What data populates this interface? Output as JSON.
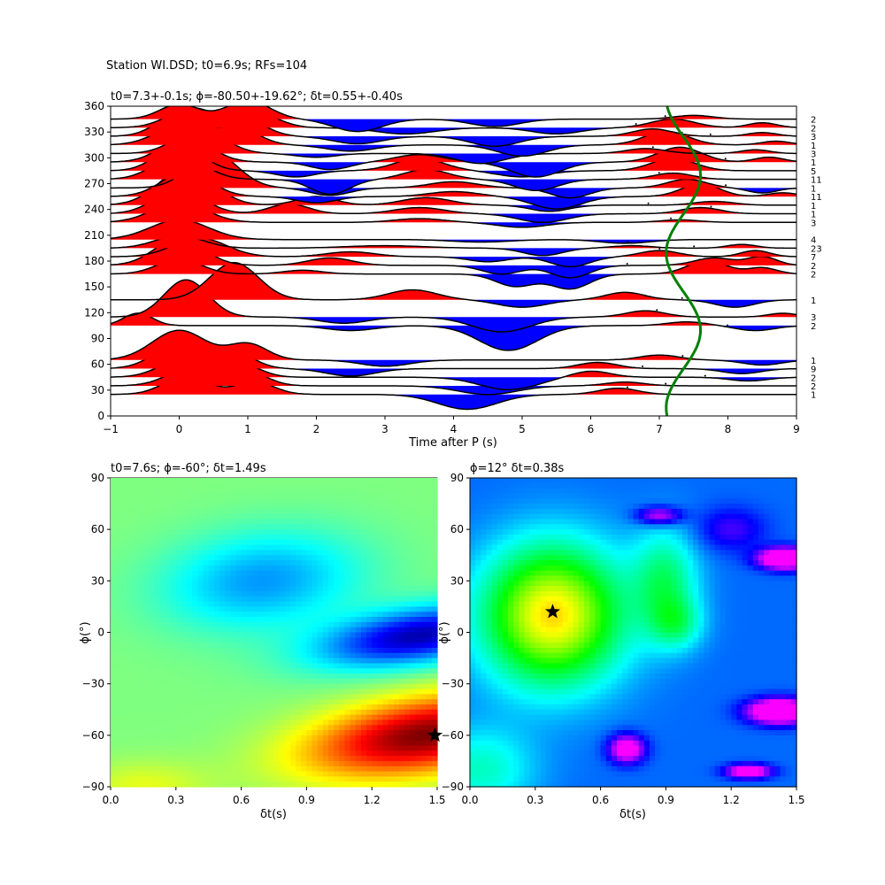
{
  "figure": {
    "suptitle": "Station WI.DSD; t0=6.9s; RFs=104"
  },
  "chart_data": [
    {
      "type": "line",
      "title": "t0=7.3+-0.1s; ϕ=-80.50+-19.62°; δt=0.55+-0.40s",
      "xlabel": "Time after P (s)",
      "ylabel": "",
      "xlim": [
        -1,
        9
      ],
      "ylim": [
        0,
        360
      ],
      "xticks": [
        "−1",
        "0",
        "1",
        "2",
        "3",
        "4",
        "5",
        "6",
        "7",
        "8",
        "9"
      ],
      "yticks": [
        "0",
        "30",
        "60",
        "90",
        "120",
        "150",
        "180",
        "210",
        "240",
        "270",
        "300",
        "330",
        "360"
      ],
      "fill_positive_color": "#ff0000",
      "fill_negative_color": "#0000ff",
      "trace_color": "#000000",
      "curve_color": "#008000",
      "traces": [
        {
          "baz": 25,
          "count": "1",
          "peaks": [
            [
              0.1,
              1.5,
              0.45
            ],
            [
              1.1,
              1.0,
              0.4
            ],
            [
              4.2,
              -1.2,
              0.6
            ],
            [
              6.4,
              0.5,
              0.4
            ]
          ]
        },
        {
          "baz": 35,
          "count": "2",
          "peaks": [
            [
              0.2,
              1.5,
              0.5
            ],
            [
              1.0,
              1.1,
              0.4
            ],
            [
              4.5,
              -0.7,
              0.6
            ],
            [
              6.5,
              0.3,
              0.4
            ]
          ]
        },
        {
          "baz": 45,
          "count": "2",
          "peaks": [
            [
              0.1,
              1.6,
              0.5
            ],
            [
              0.9,
              1.0,
              0.4
            ],
            [
              4.8,
              -1.0,
              0.6
            ],
            [
              6.0,
              0.5,
              0.4
            ],
            [
              8.3,
              -0.3,
              0.4
            ]
          ]
        },
        {
          "baz": 55,
          "count": "9",
          "peaks": [
            [
              0.0,
              2.0,
              0.5
            ],
            [
              0.8,
              1.3,
              0.4
            ],
            [
              2.5,
              -0.6,
              0.5
            ],
            [
              6.1,
              0.5,
              0.4
            ],
            [
              8.2,
              -0.4,
              0.4
            ]
          ]
        },
        {
          "baz": 65,
          "count": "1",
          "peaks": [
            [
              0.0,
              2.4,
              0.55
            ],
            [
              1.0,
              1.3,
              0.4
            ],
            [
              3.0,
              -0.5,
              0.5
            ],
            [
              7.0,
              0.4,
              0.4
            ],
            [
              8.5,
              -0.4,
              0.4
            ]
          ]
        },
        {
          "baz": 105,
          "count": "2",
          "peaks": [
            [
              -0.6,
              1.0,
              0.3
            ],
            [
              2.5,
              -0.4,
              0.5
            ],
            [
              4.8,
              -2.0,
              0.6
            ],
            [
              7.4,
              0.3,
              0.4
            ],
            [
              8.4,
              -0.4,
              0.4
            ]
          ]
        },
        {
          "baz": 115,
          "count": "3",
          "peaks": [
            [
              0.1,
              3.0,
              0.45
            ],
            [
              2.4,
              -0.5,
              0.5
            ],
            [
              4.7,
              -1.2,
              0.6
            ],
            [
              6.8,
              0.5,
              0.4
            ],
            [
              8.8,
              0.3,
              0.3
            ]
          ]
        },
        {
          "baz": 135,
          "count": "1",
          "peaks": [
            [
              0.8,
              3.0,
              0.5
            ],
            [
              3.4,
              0.8,
              0.5
            ],
            [
              5.0,
              -0.6,
              0.5
            ],
            [
              6.5,
              0.6,
              0.4
            ],
            [
              8.1,
              -0.6,
              0.4
            ]
          ]
        },
        {
          "baz": 165,
          "count": "2",
          "peaks": [
            [
              0.0,
              1.2,
              0.45
            ],
            [
              1.8,
              0.3,
              0.4
            ],
            [
              4.9,
              -1.0,
              0.4
            ],
            [
              5.7,
              -1.2,
              0.4
            ],
            [
              7.7,
              1.1,
              0.4
            ],
            [
              8.5,
              0.5,
              0.3
            ]
          ]
        },
        {
          "baz": 175,
          "count": "2",
          "peaks": [
            [
              0.0,
              2.2,
              0.5
            ],
            [
              2.2,
              0.6,
              0.45
            ],
            [
              4.7,
              -0.7,
              0.4
            ],
            [
              5.7,
              -1.0,
              0.4
            ],
            [
              7.8,
              0.6,
              0.4
            ],
            [
              8.5,
              0.7,
              0.3
            ]
          ]
        },
        {
          "baz": 185,
          "count": "7",
          "peaks": [
            [
              0.3,
              1.5,
              0.55
            ],
            [
              2.5,
              0.4,
              0.5
            ],
            [
              4.5,
              -0.4,
              0.4
            ],
            [
              5.7,
              -0.8,
              0.4
            ],
            [
              7.0,
              0.5,
              0.4
            ],
            [
              8.4,
              0.5,
              0.3
            ]
          ]
        },
        {
          "baz": 195,
          "count": "23",
          "peaks": [
            [
              0.0,
              1.0,
              0.5
            ],
            [
              3.0,
              0.2,
              0.8
            ],
            [
              5.3,
              -0.6,
              0.4
            ],
            [
              6.6,
              0.2,
              0.4
            ],
            [
              8.2,
              0.3,
              0.3
            ]
          ]
        },
        {
          "baz": 205,
          "count": "4",
          "peaks": [
            [
              0.0,
              1.6,
              0.6
            ],
            [
              4.4,
              -0.2,
              0.6
            ],
            [
              6.5,
              -0.3,
              0.5
            ]
          ]
        },
        {
          "baz": 225,
          "count": "3",
          "peaks": [
            [
              0.0,
              1.6,
              0.55
            ],
            [
              3.5,
              0.3,
              0.5
            ],
            [
              5.0,
              -0.4,
              0.5
            ],
            [
              7.3,
              0.2,
              0.4
            ]
          ]
        },
        {
          "baz": 235,
          "count": "1",
          "peaks": [
            [
              0.0,
              2.0,
              0.5
            ],
            [
              1.6,
              0.8,
              0.4
            ],
            [
              3.5,
              0.5,
              0.5
            ],
            [
              5.3,
              -0.7,
              0.5
            ],
            [
              7.6,
              0.5,
              0.4
            ]
          ]
        },
        {
          "baz": 245,
          "count": "1",
          "peaks": [
            [
              0.1,
              3.0,
              0.55
            ],
            [
              2.0,
              0.7,
              0.4
            ],
            [
              3.6,
              0.6,
              0.5
            ],
            [
              5.4,
              -0.5,
              0.4
            ],
            [
              7.8,
              0.3,
              0.4
            ]
          ]
        },
        {
          "baz": 255,
          "count": "11",
          "peaks": [
            [
              0.1,
              2.0,
              0.5
            ],
            [
              2.0,
              -0.5,
              0.4
            ],
            [
              4.0,
              0.4,
              0.5
            ],
            [
              5.5,
              -1.0,
              0.5
            ],
            [
              7.6,
              1.0,
              0.4
            ],
            [
              8.8,
              0.3,
              0.3
            ]
          ]
        },
        {
          "baz": 265,
          "count": "1",
          "peaks": [
            [
              0.5,
              2.8,
              0.5
            ],
            [
              2.2,
              -0.6,
              0.4
            ],
            [
              4.0,
              0.5,
              0.5
            ],
            [
              5.7,
              -0.8,
              0.4
            ],
            [
              7.4,
              0.7,
              0.4
            ],
            [
              8.5,
              -0.4,
              0.3
            ]
          ]
        },
        {
          "baz": 275,
          "count": "11",
          "peaks": [
            [
              0.0,
              2.0,
              0.5
            ],
            [
              2.2,
              -1.2,
              0.4
            ],
            [
              3.6,
              0.8,
              0.45
            ],
            [
              5.2,
              -0.9,
              0.45
            ],
            [
              7.2,
              0.5,
              0.4
            ]
          ]
        },
        {
          "baz": 285,
          "count": "5",
          "peaks": [
            [
              0.0,
              2.2,
              0.45
            ],
            [
              1.7,
              -0.5,
              0.4
            ],
            [
              3.5,
              1.0,
              0.5
            ],
            [
              5.0,
              -0.5,
              0.5
            ],
            [
              7.2,
              1.0,
              0.45
            ]
          ]
        },
        {
          "baz": 295,
          "count": "1",
          "peaks": [
            [
              0.1,
              2.0,
              0.5
            ],
            [
              2.2,
              -0.6,
              0.4
            ],
            [
              3.5,
              0.6,
              0.5
            ],
            [
              5.2,
              -1.2,
              0.5
            ],
            [
              7.3,
              1.2,
              0.45
            ],
            [
              8.6,
              0.4,
              0.3
            ]
          ]
        },
        {
          "baz": 305,
          "count": "3",
          "peaks": [
            [
              0.3,
              2.0,
              0.5
            ],
            [
              2.0,
              -0.3,
              0.4
            ],
            [
              4.4,
              -0.8,
              0.5
            ],
            [
              6.8,
              0.4,
              0.4
            ],
            [
              8.4,
              0.3,
              0.3
            ]
          ]
        },
        {
          "baz": 315,
          "count": "1",
          "peaks": [
            [
              0.0,
              1.5,
              0.5
            ],
            [
              0.9,
              1.2,
              0.4
            ],
            [
              2.5,
              -0.5,
              0.5
            ],
            [
              5.0,
              -0.9,
              0.5
            ],
            [
              7.1,
              1.1,
              0.45
            ],
            [
              8.7,
              0.3,
              0.3
            ]
          ]
        },
        {
          "baz": 325,
          "count": "3",
          "peaks": [
            [
              0.0,
              1.8,
              0.45
            ],
            [
              1.0,
              1.2,
              0.4
            ],
            [
              2.6,
              -0.6,
              0.5
            ],
            [
              4.6,
              -0.8,
              0.5
            ],
            [
              6.9,
              0.6,
              0.4
            ],
            [
              8.5,
              0.3,
              0.3
            ]
          ]
        },
        {
          "baz": 335,
          "count": "2",
          "peaks": [
            [
              0.2,
              1.6,
              0.5
            ],
            [
              1.2,
              1.0,
              0.4
            ],
            [
              3.3,
              -0.5,
              0.6
            ],
            [
              5.5,
              -0.5,
              0.5
            ],
            [
              7.2,
              0.7,
              0.45
            ],
            [
              8.5,
              0.4,
              0.3
            ]
          ]
        },
        {
          "baz": 345,
          "count": "2",
          "peaks": [
            [
              0.0,
              1.2,
              0.4
            ],
            [
              1.0,
              1.5,
              0.45
            ],
            [
              2.6,
              -1.0,
              0.5
            ],
            [
              4.6,
              -0.6,
              0.5
            ],
            [
              7.5,
              0.3,
              0.4
            ]
          ]
        }
      ],
      "t0_curve": {
        "base": 7.35,
        "amplitude": 0.25,
        "phase_deg": -80.5
      }
    },
    {
      "type": "heatmap",
      "title": "t0=7.6s; ϕ=-60°; δt=1.49s",
      "xlabel": "δt(s)",
      "ylabel": "ϕ(°)",
      "xlim": [
        0,
        1.5
      ],
      "ylim": [
        -90,
        90
      ],
      "xticks": [
        "0.0",
        "0.3",
        "0.6",
        "0.9",
        "1.2",
        "1.5"
      ],
      "yticks": [
        "−90",
        "−60",
        "−30",
        "0",
        "30",
        "60",
        "90"
      ],
      "colormap": "jet",
      "best": {
        "dt": 1.49,
        "phi": -60
      },
      "blobs": [
        {
          "x": 1.45,
          "y": -60,
          "amp": 1.0,
          "sx": 0.55,
          "sy": 22,
          "slope": 18
        },
        {
          "x": 1.42,
          "y": -2,
          "amp": -0.9,
          "sx": 0.45,
          "sy": 16,
          "slope": 18
        },
        {
          "x": 0.7,
          "y": 30,
          "amp": -0.45,
          "sx": 0.45,
          "sy": 28,
          "slope": 10
        },
        {
          "x": 0.15,
          "y": -90,
          "amp": 0.2,
          "sx": 0.3,
          "sy": 15,
          "slope": 0
        }
      ],
      "base": 0.5,
      "scale": 0.5
    },
    {
      "type": "heatmap",
      "title": "ϕ=12° δt=0.38s",
      "xlabel": "δt(s)",
      "ylabel": "ϕ(°)",
      "xlim": [
        0,
        1.5
      ],
      "ylim": [
        -90,
        90
      ],
      "xticks": [
        "0.0",
        "0.3",
        "0.6",
        "0.9",
        "1.2",
        "1.5"
      ],
      "yticks": [
        "−90",
        "−60",
        "−30",
        "0",
        "30",
        "60",
        "90"
      ],
      "colormap": "hsv",
      "best": {
        "dt": 0.38,
        "phi": 12
      },
      "blobs": [
        {
          "x": 0.38,
          "y": 10,
          "amp": 1.0,
          "sx": 0.32,
          "sy": 40,
          "slope": 0
        },
        {
          "x": 0.9,
          "y": 30,
          "amp": 0.4,
          "sx": 0.15,
          "sy": 30,
          "slope": 0
        },
        {
          "x": 0.95,
          "y": 5,
          "amp": 0.3,
          "sx": 0.12,
          "sy": 15,
          "slope": 0
        },
        {
          "x": 1.45,
          "y": 43,
          "amp": -1.0,
          "sx": 0.12,
          "sy": 6,
          "slope": 0
        },
        {
          "x": 1.42,
          "y": -46,
          "amp": -1.0,
          "sx": 0.14,
          "sy": 7,
          "slope": 0
        },
        {
          "x": 0.72,
          "y": -68,
          "amp": -0.7,
          "sx": 0.08,
          "sy": 8,
          "slope": 0
        },
        {
          "x": 1.28,
          "y": -81,
          "amp": -0.75,
          "sx": 0.1,
          "sy": 4,
          "slope": 0
        },
        {
          "x": 0.87,
          "y": 68,
          "amp": -0.5,
          "sx": 0.1,
          "sy": 5,
          "slope": 0
        },
        {
          "x": 1.2,
          "y": 60,
          "amp": -0.25,
          "sx": 0.15,
          "sy": 12,
          "slope": 0
        },
        {
          "x": 0.05,
          "y": -80,
          "amp": 0.3,
          "sx": 0.25,
          "sy": 25,
          "slope": 0
        }
      ],
      "base": 0.28,
      "scale": 0.55
    }
  ]
}
